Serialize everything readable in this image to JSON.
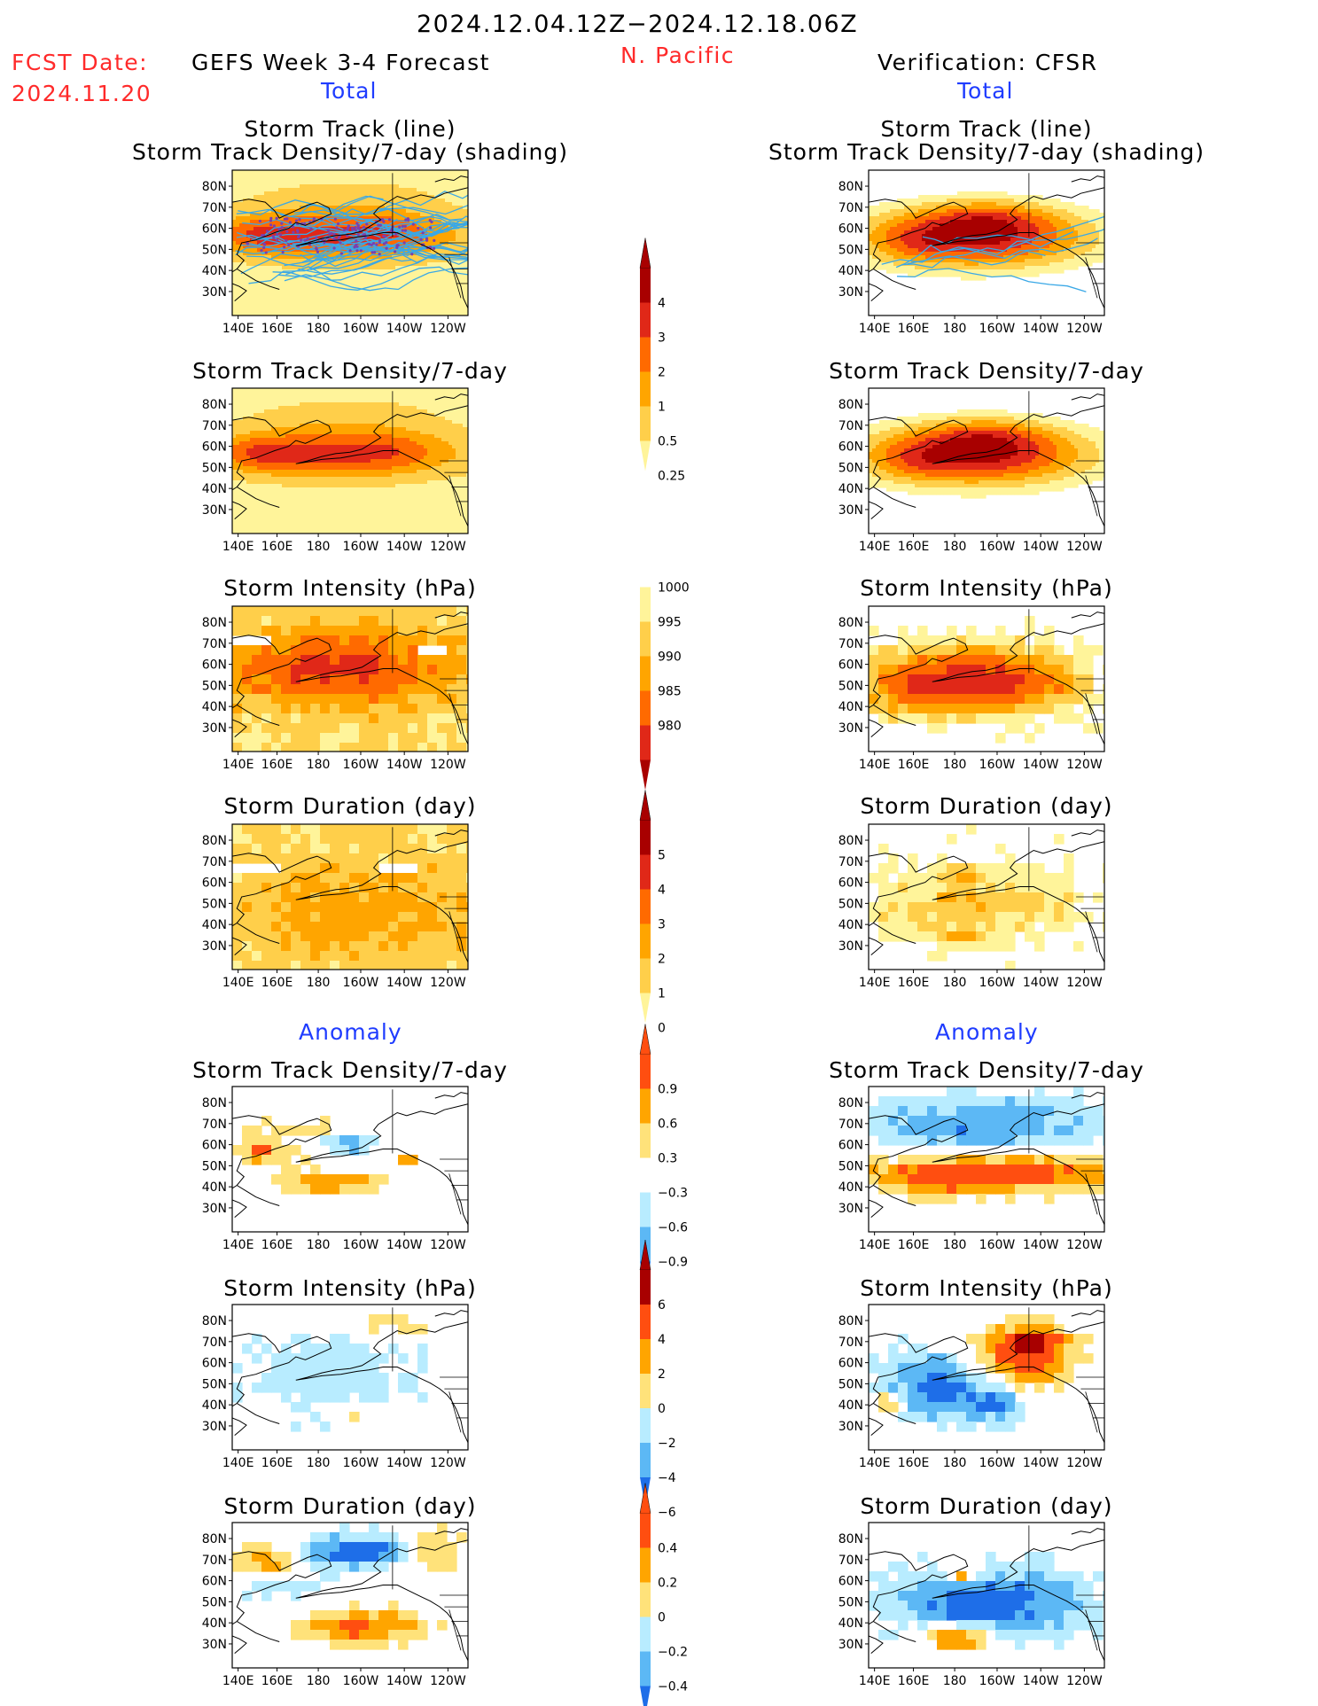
{
  "header": {
    "period": "2024.12.04.12Z−2024.12.18.06Z",
    "fcst_label": "FCST Date:",
    "fcst_date": "2024.11.20",
    "model": "GEFS Week 3-4 Forecast",
    "region": "N. Pacific",
    "verification": "Verification: CFSR"
  },
  "sections": {
    "total": "Total",
    "anomaly": "Anomaly"
  },
  "axes": {
    "x_ticks": [
      "140E",
      "160E",
      "180",
      "160W",
      "140W",
      "120W"
    ],
    "y_ticks": [
      "80N",
      "70N",
      "60N",
      "50N",
      "40N",
      "30N"
    ]
  },
  "panel_titles": {
    "track": "Storm Track (line)\nStorm Track Density/7-day (shading)",
    "density": "Storm Track Density/7-day",
    "intensity": "Storm Intensity (hPa)",
    "duration": "Storm Duration (day)"
  },
  "colorbars": [
    {
      "name": "density-total",
      "labels": [
        "4",
        "3",
        "2",
        "1",
        "0.5",
        "0.25"
      ],
      "colors": [
        "#a80000",
        "#e02818",
        "#ff6a00",
        "#ffa500",
        "#ffcf4a",
        "#fff49a"
      ]
    },
    {
      "name": "intensity-total",
      "labels": [
        "1000",
        "995",
        "990",
        "985",
        "980"
      ],
      "colors": [
        "#fff49a",
        "#ffcf4a",
        "#ffa500",
        "#ff6a00",
        "#e02818",
        "#a80000"
      ]
    },
    {
      "name": "duration-total",
      "labels": [
        "5",
        "4",
        "3",
        "2",
        "1",
        "0"
      ],
      "colors": [
        "#a80000",
        "#e02818",
        "#ff6a00",
        "#ffa500",
        "#ffcf4a",
        "#fff49a"
      ]
    },
    {
      "name": "density-anomaly",
      "labels": [
        "0.9",
        "0.6",
        "0.3",
        "−0.3",
        "−0.6",
        "−0.9"
      ],
      "colors": [
        "#ff4e10",
        "#ffa500",
        "#ffe27a",
        "#ffffff",
        "#b8ecff",
        "#5cb8f5",
        "#1e6ee8"
      ]
    },
    {
      "name": "intensity-anomaly",
      "labels": [
        "6",
        "4",
        "2",
        "0",
        "−2",
        "−4",
        "−6"
      ],
      "colors": [
        "#a80000",
        "#ff4e10",
        "#ffa500",
        "#ffe27a",
        "#b8ecff",
        "#5cb8f5",
        "#1e6ee8"
      ]
    },
    {
      "name": "duration-anomaly",
      "labels": [
        "0.4",
        "0.2",
        "0",
        "−0.2",
        "−0.4"
      ],
      "colors": [
        "#ff4e10",
        "#ffa500",
        "#ffe27a",
        "#b8ecff",
        "#5cb8f5",
        "#1e6ee8"
      ]
    }
  ],
  "colors": {
    "red_text": "#ff2a2a",
    "blue_text": "#1f3cff",
    "track_lines": "#3aa8e6"
  },
  "chart_data": {
    "type": "heatmap",
    "x_range": [
      "140E",
      "110W"
    ],
    "y_range": [
      "25N",
      "85N"
    ],
    "panels": [
      {
        "name": "forecast-track-total",
        "title": "Storm Track (line) / Storm Track Density/7-day (shading)",
        "source": "GEFS Week 3-4 Forecast",
        "max_band": "3-4"
      },
      {
        "name": "verification-track-total",
        "title": "Storm Track (line) / Storm Track Density/7-day (shading)",
        "source": "CFSR",
        "max_band": ">4"
      },
      {
        "name": "forecast-density-total",
        "title": "Storm Track Density/7-day",
        "source": "GEFS",
        "max_band": "3-4"
      },
      {
        "name": "verification-density-total",
        "title": "Storm Track Density/7-day",
        "source": "CFSR",
        "max_band": ">4"
      },
      {
        "name": "forecast-intensity-total",
        "title": "Storm Intensity (hPa)",
        "source": "GEFS",
        "min_band": "<980"
      },
      {
        "name": "verification-intensity-total",
        "title": "Storm Intensity (hPa)",
        "source": "CFSR",
        "min_band": "<980"
      },
      {
        "name": "forecast-duration-total",
        "title": "Storm Duration (day)",
        "source": "GEFS",
        "max_band": "2-3"
      },
      {
        "name": "verification-duration-total",
        "title": "Storm Duration (day)",
        "source": "CFSR",
        "max_band": "3-4"
      },
      {
        "name": "forecast-density-anomaly",
        "title": "Storm Track Density/7-day",
        "source": "GEFS",
        "range": [
          -0.9,
          0.9
        ]
      },
      {
        "name": "verification-density-anomaly",
        "title": "Storm Track Density/7-day",
        "source": "CFSR",
        "range": [
          -0.9,
          0.9
        ]
      },
      {
        "name": "forecast-intensity-anomaly",
        "title": "Storm Intensity (hPa)",
        "source": "GEFS",
        "range": [
          -6,
          6
        ]
      },
      {
        "name": "verification-intensity-anomaly",
        "title": "Storm Intensity (hPa)",
        "source": "CFSR",
        "range": [
          -6,
          6
        ]
      },
      {
        "name": "forecast-duration-anomaly",
        "title": "Storm Duration (day)",
        "source": "GEFS",
        "range": [
          -0.4,
          0.4
        ]
      },
      {
        "name": "verification-duration-anomaly",
        "title": "Storm Duration (day)",
        "source": "CFSR",
        "range": [
          -0.4,
          0.4
        ]
      }
    ]
  }
}
